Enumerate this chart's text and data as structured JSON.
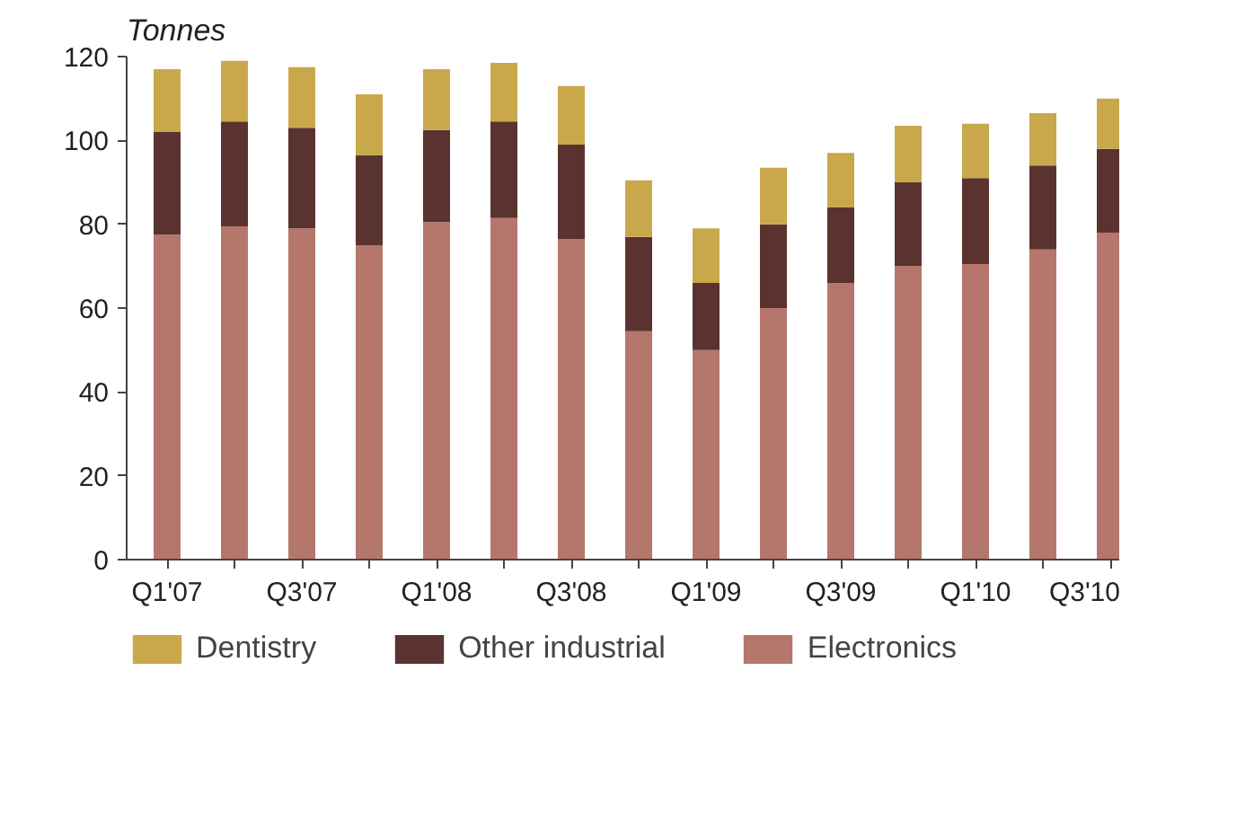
{
  "chart_data": {
    "type": "bar",
    "stacked": true,
    "ylabel": "Tonnes",
    "categories": [
      "Q1'07",
      null,
      "Q3'07",
      null,
      "Q1'08",
      null,
      "Q3'08",
      null,
      "Q1'09",
      null,
      "Q3'09",
      null,
      "Q1'10",
      null,
      "Q3'10"
    ],
    "series": [
      {
        "name": "Electronics",
        "color": "#b5776c",
        "values": [
          77.5,
          79.5,
          79,
          75,
          80.5,
          81.5,
          76.5,
          54.5,
          50,
          60,
          66,
          70,
          70.5,
          74,
          78
        ]
      },
      {
        "name": "Other industrial",
        "color": "#5a3330",
        "values": [
          24.5,
          25,
          24,
          21.5,
          22,
          23,
          22.5,
          22.5,
          16,
          20,
          18,
          20,
          20.5,
          20,
          20
        ]
      },
      {
        "name": "Dentistry",
        "color": "#c9a84c",
        "values": [
          15,
          14.5,
          14.5,
          14.5,
          14.5,
          14,
          14,
          13.5,
          13,
          13.5,
          13,
          13.5,
          13,
          12.5,
          12
        ]
      }
    ],
    "ylim": [
      0,
      120
    ],
    "yticks": [
      0,
      20,
      40,
      60,
      80,
      100,
      120
    ],
    "grid": false,
    "legend": "bottom"
  }
}
